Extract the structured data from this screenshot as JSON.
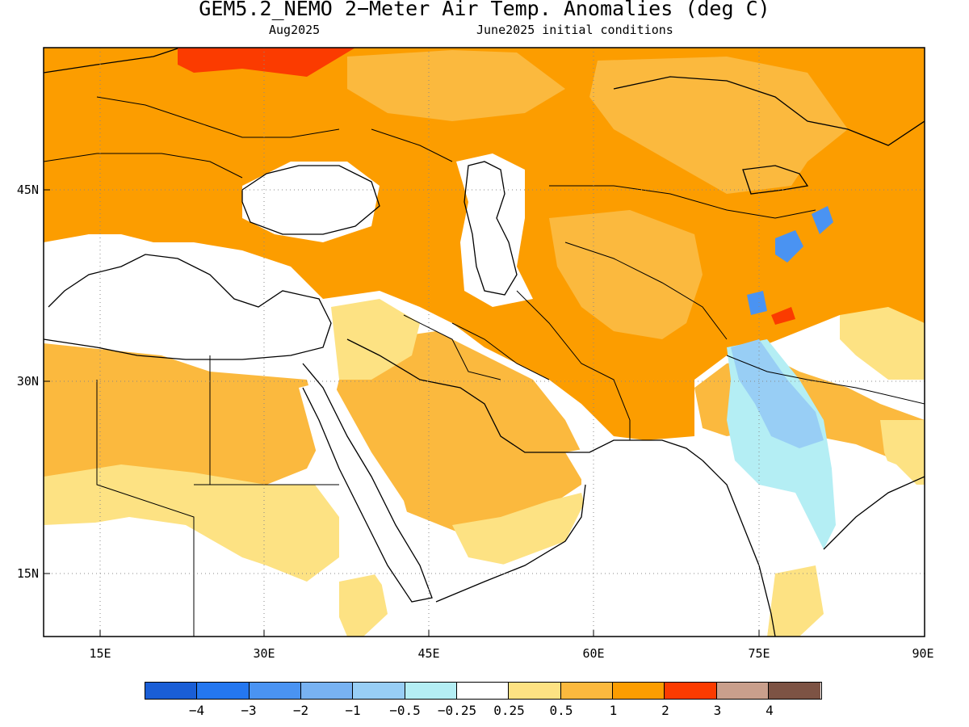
{
  "title": "GEM5.2_NEMO 2−Meter Air Temp. Anomalies (deg C)",
  "subtitle_left": "Aug2025",
  "subtitle_right": "June2025 initial conditions",
  "map_extent": {
    "lon_min": 10,
    "lon_max": 90,
    "lat_min": 10,
    "lat_max": 55
  },
  "x_ticks": [
    "15E",
    "30E",
    "45E",
    "60E",
    "75E",
    "90E"
  ],
  "y_ticks": [
    "45N",
    "30N",
    "15N"
  ],
  "legend": {
    "colors": [
      "#1a5ed6",
      "#2477f0",
      "#4a93f2",
      "#78b2f2",
      "#98cef5",
      "#b4eef4",
      "#ffffff",
      "#fde283",
      "#fbb93e",
      "#fc9d00",
      "#fb3b00",
      "#c99f8c",
      "#7d5344"
    ],
    "labels": [
      "−4",
      "−3",
      "−2",
      "−1",
      "−0.5",
      "−0.25",
      "0.25",
      "0.5",
      "1",
      "2",
      "3",
      "4"
    ]
  },
  "colors": {
    "warm_1_2": "#fc9d00",
    "warm_05_1": "#fbb93e",
    "warm_025_05": "#fde283",
    "hot_2_3": "#fb3b00",
    "cool_0": "#b4eef4",
    "cool_1": "#98cef5",
    "cool_2": "#4a93f2"
  }
}
